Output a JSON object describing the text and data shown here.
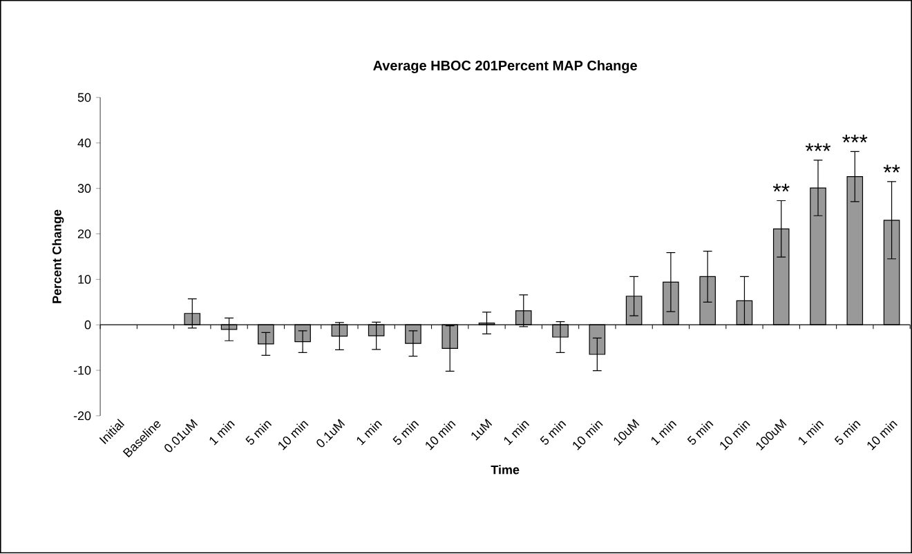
{
  "chart_data": {
    "type": "bar",
    "title": "Average HBOC 201Percent MAP Change",
    "xlabel": "Time",
    "ylabel": "Percent Change",
    "categories": [
      "Initial",
      "Baseline",
      "0.01uM",
      "1 min",
      "5 min",
      "10 min",
      "0.1uM",
      "1 min",
      "5 min",
      "10 min",
      "1uM",
      "1 min",
      "5 min",
      "10 min",
      "10uM",
      "1 min",
      "5 min",
      "10 min",
      "100uM",
      "1 min",
      "5 min",
      "10 min"
    ],
    "values": [
      null,
      null,
      2.5,
      -1.0,
      -4.2,
      -3.7,
      -2.5,
      -2.4,
      -4.1,
      -5.2,
      0.4,
      3.1,
      -2.7,
      -6.5,
      6.3,
      9.4,
      10.6,
      5.3,
      21.1,
      30.1,
      32.6,
      23.0
    ],
    "errors": [
      null,
      null,
      3.2,
      2.5,
      2.5,
      2.4,
      3.0,
      3.0,
      2.8,
      5.0,
      2.4,
      3.5,
      3.4,
      3.6,
      4.3,
      6.5,
      5.6,
      5.3,
      6.2,
      6.1,
      5.5,
      8.5
    ],
    "color": "#999999",
    "ylim": [
      -20,
      50
    ],
    "yticks": [
      -20,
      -10,
      0,
      10,
      20,
      30,
      40,
      50
    ],
    "annotations": [
      "**",
      "***",
      "***",
      "**"
    ]
  }
}
